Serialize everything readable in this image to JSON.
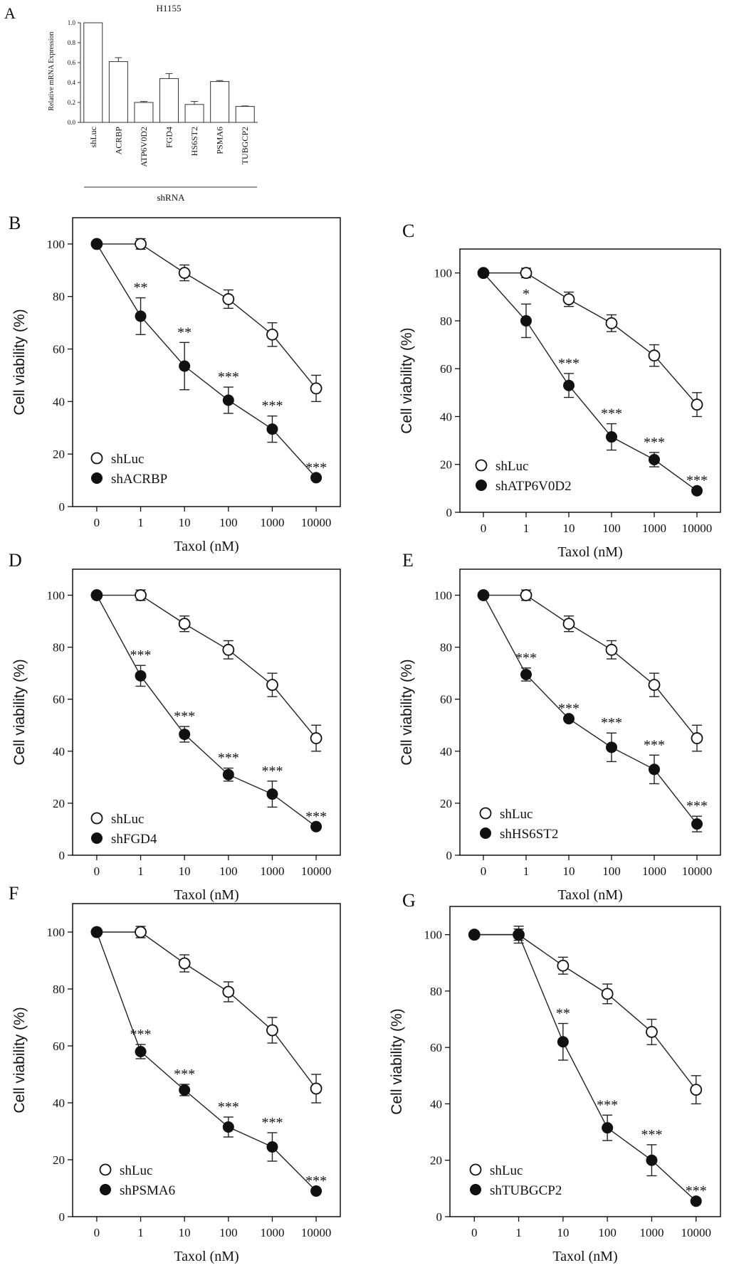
{
  "chart_data": [
    {
      "panel": "A",
      "type": "bar",
      "title": "H1155",
      "ylabel": "Relative mRNA Expression",
      "xlabel": "shRNA",
      "ylim": [
        0,
        1.0
      ],
      "yticks": [
        0.0,
        0.2,
        0.4,
        0.6,
        0.8,
        1.0
      ],
      "ytick_labels": [
        "0.0",
        "0.2",
        "0.4",
        "0.6",
        "0.8",
        "1.0"
      ],
      "categories": [
        "shLuc",
        "ACRBP",
        "ATP6V0D2",
        "FGD4",
        "HS6ST2",
        "PSMA6",
        "TUBGCP2"
      ],
      "values": [
        1.0,
        0.61,
        0.2,
        0.44,
        0.18,
        0.41,
        0.16
      ],
      "errors": [
        0,
        0.04,
        0.01,
        0.05,
        0.03,
        0.01,
        0.005
      ],
      "bar_fill": "#ffffff",
      "bar_stroke": "#333333"
    },
    {
      "panel": "B",
      "type": "line",
      "ylabel": "Cell viability (%)",
      "xlabel": "Taxol (nM)",
      "ylim": [
        0,
        110
      ],
      "yticks": [
        0,
        20,
        40,
        60,
        80,
        100
      ],
      "ytick_labels": [
        "0",
        "20",
        "40",
        "60",
        "80",
        "100"
      ],
      "categories": [
        "0",
        "1",
        "10",
        "100",
        "1000",
        "10000"
      ],
      "series": [
        {
          "name": "shLuc",
          "marker": "open",
          "values": [
            100,
            100,
            89,
            79,
            65.5,
            45
          ],
          "errors": [
            0,
            2,
            3,
            3.5,
            4.5,
            5
          ]
        },
        {
          "name": "shACRBP",
          "marker": "filled",
          "values": [
            100,
            72.5,
            53.5,
            40.5,
            29.5,
            11
          ],
          "errors": [
            0,
            7,
            9,
            5,
            5,
            0
          ]
        }
      ],
      "annotations": [
        "",
        "**",
        "**",
        "***",
        "***",
        "***"
      ],
      "legend": "bottom-left"
    },
    {
      "panel": "C",
      "type": "line",
      "ylabel": "Cell viability (%)",
      "xlabel": "Taxol (nM)",
      "ylim": [
        0,
        110
      ],
      "yticks": [
        0,
        20,
        40,
        60,
        80,
        100
      ],
      "ytick_labels": [
        "0",
        "20",
        "40",
        "60",
        "80",
        "100"
      ],
      "categories": [
        "0",
        "1",
        "10",
        "100",
        "1000",
        "10000"
      ],
      "series": [
        {
          "name": "shLuc",
          "marker": "open",
          "values": [
            100,
            100,
            89,
            79,
            65.5,
            45
          ],
          "errors": [
            0,
            2,
            3,
            3.5,
            4.5,
            5
          ]
        },
        {
          "name": "shATP6V0D2",
          "marker": "filled",
          "values": [
            100,
            80,
            53,
            31.5,
            22,
            9
          ],
          "errors": [
            0,
            7,
            5,
            5.5,
            3,
            0
          ]
        }
      ],
      "annotations": [
        "",
        "*",
        "***",
        "***",
        "***",
        "***"
      ],
      "legend": "bottom-left"
    },
    {
      "panel": "D",
      "type": "line",
      "ylabel": "Cell viability (%)",
      "xlabel": "Taxol (nM)",
      "ylim": [
        0,
        110
      ],
      "yticks": [
        0,
        20,
        40,
        60,
        80,
        100
      ],
      "ytick_labels": [
        "0",
        "20",
        "40",
        "60",
        "80",
        "100"
      ],
      "categories": [
        "0",
        "1",
        "10",
        "100",
        "1000",
        "10000"
      ],
      "series": [
        {
          "name": "shLuc",
          "marker": "open",
          "values": [
            100,
            100,
            89,
            79,
            65.5,
            45
          ],
          "errors": [
            0,
            2,
            3,
            3.5,
            4.5,
            5
          ]
        },
        {
          "name": "shFGD4",
          "marker": "filled",
          "values": [
            100,
            69,
            46.5,
            31,
            23.5,
            11
          ],
          "errors": [
            0,
            4,
            3,
            2.5,
            5,
            0
          ]
        }
      ],
      "annotations": [
        "",
        "***",
        "***",
        "***",
        "***",
        "***"
      ],
      "legend": "bottom-left"
    },
    {
      "panel": "E",
      "type": "line",
      "ylabel": "Cell viability (%)",
      "xlabel": "Taxol (nM)",
      "ylim": [
        0,
        110
      ],
      "yticks": [
        0,
        20,
        40,
        60,
        80,
        100
      ],
      "ytick_labels": [
        "0",
        "20",
        "40",
        "60",
        "80",
        "100"
      ],
      "categories": [
        "0",
        "1",
        "10",
        "100",
        "1000",
        "10000"
      ],
      "series": [
        {
          "name": "shLuc",
          "marker": "open",
          "values": [
            100,
            100,
            89,
            79,
            65.5,
            45
          ],
          "errors": [
            0,
            2,
            3,
            3.5,
            4.5,
            5
          ]
        },
        {
          "name": "shHS6ST2",
          "marker": "filled",
          "values": [
            100,
            69.5,
            52.5,
            41.5,
            33,
            12
          ],
          "errors": [
            0,
            2.5,
            0,
            5.5,
            5.5,
            3
          ]
        }
      ],
      "annotations": [
        "",
        "***",
        "***",
        "***",
        "***",
        "***"
      ],
      "legend": "bottom-left"
    },
    {
      "panel": "F",
      "type": "line",
      "ylabel": "Cell viability (%)",
      "xlabel": "Taxol (nM)",
      "ylim": [
        0,
        110
      ],
      "yticks": [
        0,
        20,
        40,
        60,
        80,
        100
      ],
      "ytick_labels": [
        "0",
        "20",
        "40",
        "60",
        "80",
        "100"
      ],
      "categories": [
        "0",
        "1",
        "10",
        "100",
        "1000",
        "10000"
      ],
      "series": [
        {
          "name": "shLuc",
          "marker": "open",
          "values": [
            100,
            100,
            89,
            79,
            65.5,
            45
          ],
          "errors": [
            0,
            2,
            3,
            3.5,
            4.5,
            5
          ]
        },
        {
          "name": "shPSMA6",
          "marker": "filled",
          "values": [
            100,
            58,
            44.5,
            31.5,
            24.5,
            9
          ],
          "errors": [
            0,
            2.5,
            2,
            3.5,
            5,
            0
          ]
        }
      ],
      "annotations": [
        "",
        "***",
        "***",
        "***",
        "***",
        "***"
      ],
      "legend": "bottom-left"
    },
    {
      "panel": "G",
      "type": "line",
      "ylabel": "Cell viability (%)",
      "xlabel": "Taxol (nM)",
      "ylim": [
        0,
        110
      ],
      "yticks": [
        0,
        20,
        40,
        60,
        80,
        100
      ],
      "ytick_labels": [
        "0",
        "20",
        "40",
        "60",
        "80",
        "100"
      ],
      "categories": [
        "0",
        "1",
        "10",
        "100",
        "1000",
        "10000"
      ],
      "series": [
        {
          "name": "shLuc",
          "marker": "open",
          "values": [
            100,
            100,
            89,
            79,
            65.5,
            45
          ],
          "errors": [
            0,
            2,
            3,
            3.5,
            4.5,
            5
          ]
        },
        {
          "name": "shTUBGCP2",
          "marker": "filled",
          "values": [
            100,
            100,
            62,
            31.5,
            20,
            5.5
          ],
          "errors": [
            0,
            3,
            6.5,
            4.5,
            5.5,
            0
          ]
        }
      ],
      "annotations": [
        "",
        "",
        "**",
        "***",
        "***",
        "***"
      ],
      "legend": "bottom-left"
    }
  ]
}
